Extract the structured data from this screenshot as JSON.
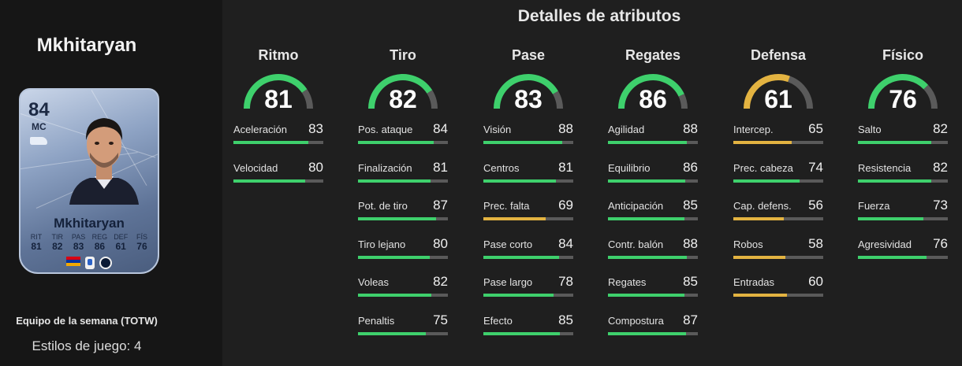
{
  "colors": {
    "high": "#3ed06c",
    "mid": "#e3b341",
    "track": "#5a5a5a"
  },
  "player": {
    "name": "Mkhitaryan",
    "card": {
      "rating": "84",
      "position": "MC",
      "name": "Mkhitaryan",
      "stats": [
        {
          "label": "RIT",
          "value": "81"
        },
        {
          "label": "TIR",
          "value": "82"
        },
        {
          "label": "PAS",
          "value": "83"
        },
        {
          "label": "REG",
          "value": "86"
        },
        {
          "label": "DEF",
          "value": "61"
        },
        {
          "label": "FÍS",
          "value": "76"
        }
      ],
      "icons": [
        "boot-icon",
        "flag-armenia-icon",
        "league-badge-icon",
        "club-badge-icon"
      ]
    },
    "team_label": "Equipo de la semana (TOTW)",
    "styles_label": "Estilos de juego: 4"
  },
  "section_title": "Detalles de atributos",
  "categories": [
    {
      "title": "Ritmo",
      "value": "81",
      "attrs": [
        {
          "name": "Aceleración",
          "value": "83"
        },
        {
          "name": "Velocidad",
          "value": "80"
        }
      ]
    },
    {
      "title": "Tiro",
      "value": "82",
      "attrs": [
        {
          "name": "Pos. ataque",
          "value": "84"
        },
        {
          "name": "Finalización",
          "value": "81"
        },
        {
          "name": "Pot. de tiro",
          "value": "87"
        },
        {
          "name": "Tiro lejano",
          "value": "80"
        },
        {
          "name": "Voleas",
          "value": "82"
        },
        {
          "name": "Penaltis",
          "value": "75"
        }
      ]
    },
    {
      "title": "Pase",
      "value": "83",
      "attrs": [
        {
          "name": "Visión",
          "value": "88"
        },
        {
          "name": "Centros",
          "value": "81"
        },
        {
          "name": "Prec. falta",
          "value": "69"
        },
        {
          "name": "Pase corto",
          "value": "84"
        },
        {
          "name": "Pase largo",
          "value": "78"
        },
        {
          "name": "Efecto",
          "value": "85"
        }
      ]
    },
    {
      "title": "Regates",
      "value": "86",
      "attrs": [
        {
          "name": "Agilidad",
          "value": "88"
        },
        {
          "name": "Equilibrio",
          "value": "86"
        },
        {
          "name": "Anticipación",
          "value": "85"
        },
        {
          "name": "Contr. balón",
          "value": "88"
        },
        {
          "name": "Regates",
          "value": "85"
        },
        {
          "name": "Compostura",
          "value": "87"
        }
      ]
    },
    {
      "title": "Defensa",
      "value": "61",
      "attrs": [
        {
          "name": "Intercep.",
          "value": "65"
        },
        {
          "name": "Prec. cabeza",
          "value": "74"
        },
        {
          "name": "Cap. defens.",
          "value": "56"
        },
        {
          "name": "Robos",
          "value": "58"
        },
        {
          "name": "Entradas",
          "value": "60"
        }
      ]
    },
    {
      "title": "Físico",
      "value": "76",
      "attrs": [
        {
          "name": "Salto",
          "value": "82"
        },
        {
          "name": "Resistencia",
          "value": "82"
        },
        {
          "name": "Fuerza",
          "value": "73"
        },
        {
          "name": "Agresividad",
          "value": "76"
        }
      ]
    }
  ]
}
